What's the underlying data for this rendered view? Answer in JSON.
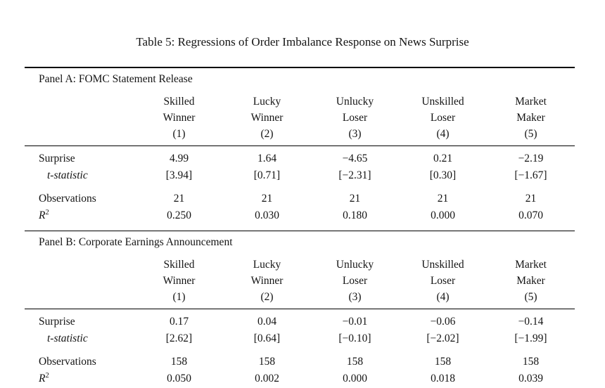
{
  "title": "Table 5: Regressions of Order Imbalance Response on News Surprise",
  "colors": {
    "background": "#ffffff",
    "text": "#141414",
    "rule": "#000000"
  },
  "table": {
    "columns": [
      {
        "line1": "Skilled",
        "line2": "Winner",
        "number": "(1)"
      },
      {
        "line1": "Lucky",
        "line2": "Winner",
        "number": "(2)"
      },
      {
        "line1": "Unlucky",
        "line2": "Loser",
        "number": "(3)"
      },
      {
        "line1": "Unskilled",
        "line2": "Loser",
        "number": "(4)"
      },
      {
        "line1": "Market",
        "line2": "Maker",
        "number": "(5)"
      }
    ],
    "panels": [
      {
        "label": "Panel A: FOMC Statement Release",
        "rows": [
          {
            "label": "Surprise",
            "style": "normal",
            "values": [
              "4.99",
              "1.64",
              "−4.65",
              "0.21",
              "−2.19"
            ]
          },
          {
            "label": "t-statistic",
            "style": "italic",
            "values": [
              "[3.94]",
              "[0.71]",
              "[−2.31]",
              "[0.30]",
              "[−1.67]"
            ]
          },
          {
            "label": "Observations",
            "style": "gap",
            "values": [
              "21",
              "21",
              "21",
              "21",
              "21"
            ]
          },
          {
            "label": "R",
            "label_sup": "2",
            "style": "rsq",
            "values": [
              "0.250",
              "0.030",
              "0.180",
              "0.000",
              "0.070"
            ]
          }
        ]
      },
      {
        "label": "Panel B: Corporate Earnings Announcement",
        "rows": [
          {
            "label": "Surprise",
            "style": "normal",
            "values": [
              "0.17",
              "0.04",
              "−0.01",
              "−0.06",
              "−0.14"
            ]
          },
          {
            "label": "t-statistic",
            "style": "italic",
            "values": [
              "[2.62]",
              "[0.64]",
              "[−0.10]",
              "[−2.02]",
              "[−1.99]"
            ]
          },
          {
            "label": "Observations",
            "style": "gap",
            "values": [
              "158",
              "158",
              "158",
              "158",
              "158"
            ]
          },
          {
            "label": "R",
            "label_sup": "2",
            "style": "rsq",
            "values": [
              "0.050",
              "0.002",
              "0.000",
              "0.018",
              "0.039"
            ]
          }
        ]
      }
    ]
  }
}
